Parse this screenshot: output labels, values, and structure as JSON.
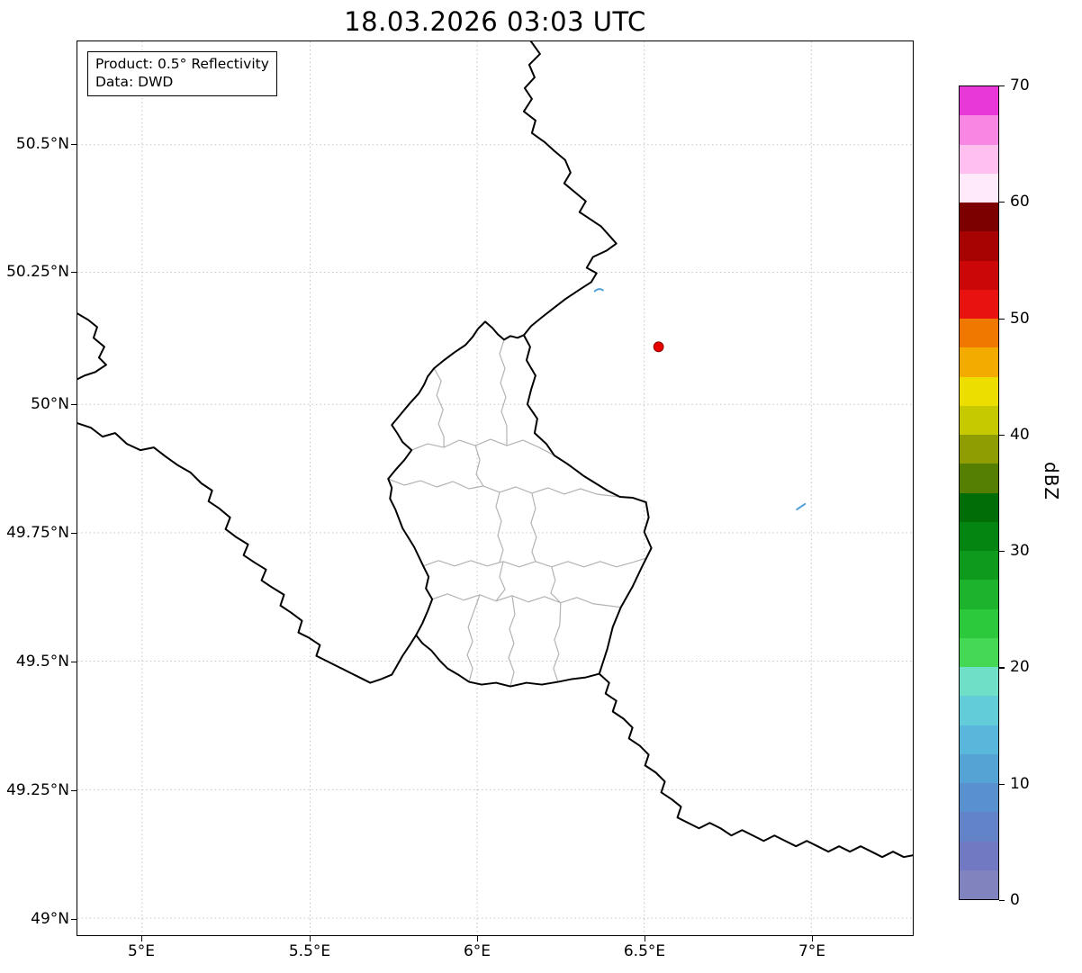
{
  "title": "18.03.2026 03:03 UTC",
  "info_box": {
    "line1": "Product: 0.5° Reflectivity",
    "line2": "Data: DWD"
  },
  "map": {
    "y_tick_labels": [
      "50.5°N",
      "50.25°N",
      "50°N",
      "49.75°N",
      "49.5°N",
      "49.25°N",
      "49°N"
    ],
    "x_tick_labels": [
      "5°E",
      "5.5°E",
      "6°E",
      "6.5°E",
      "7°E"
    ],
    "radar_site": {
      "marker_color": "#e60000"
    },
    "echo_color": "#4f9fd6",
    "national_border_color": "#000000",
    "canton_border_color": "#b3b3b3",
    "grid_color": "#b0b0b0"
  },
  "colorbar": {
    "label": "dBZ",
    "tick_labels": [
      "70",
      "60",
      "50",
      "40",
      "30",
      "20",
      "10",
      "0"
    ],
    "segment_colors_bottom_to_top": [
      "#8183be",
      "#7079c1",
      "#6383c8",
      "#5990ce",
      "#55a3d5",
      "#59b7db",
      "#62cdd9",
      "#70dfc8",
      "#44d854",
      "#2dc93d",
      "#1db32c",
      "#0e9a1d",
      "#048410",
      "#006d06",
      "#557f03",
      "#8f9c02",
      "#c6c900",
      "#ecdf00",
      "#f4ab00",
      "#f07800",
      "#e81210",
      "#cc0707",
      "#a80303",
      "#7c0000",
      "#ffeafb",
      "#ffc0f0",
      "#f887e4",
      "#e838d8"
    ]
  }
}
